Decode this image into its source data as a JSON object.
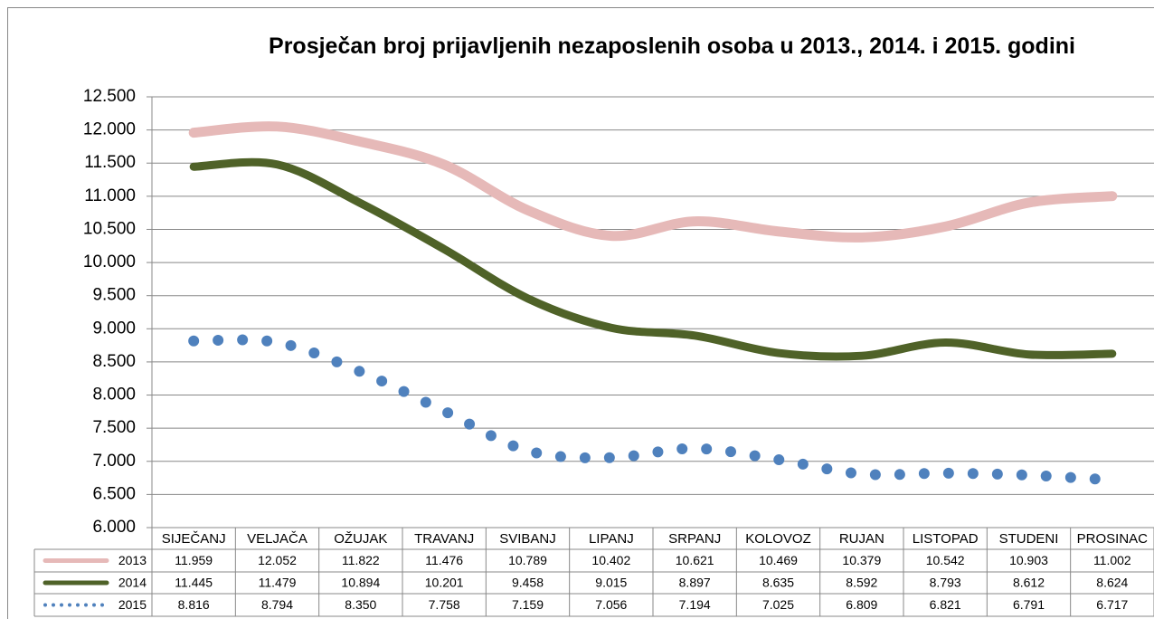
{
  "chart_data": {
    "type": "line",
    "title": "Prosječan broj prijavljenih nezaposlenih osoba u 2013., 2014. i 2015. godini",
    "categories": [
      "SIJEČANJ",
      "VELJAČA",
      "OŽUJAK",
      "TRAVANJ",
      "SVIBANJ",
      "LIPANJ",
      "SRPANJ",
      "KOLOVOZ",
      "RUJAN",
      "LISTOPAD",
      "STUDENI",
      "PROSINAC"
    ],
    "series": [
      {
        "name": "2013",
        "color": "#e6b9b8",
        "style": "solid",
        "values": [
          11959,
          12052,
          11822,
          11476,
          10789,
          10402,
          10621,
          10469,
          10379,
          10542,
          10903,
          11002
        ],
        "value_labels": [
          "11.959",
          "12.052",
          "11.822",
          "11.476",
          "10.789",
          "10.402",
          "10.621",
          "10.469",
          "10.379",
          "10.542",
          "10.903",
          "11.002"
        ]
      },
      {
        "name": "2014",
        "color": "#4f6228",
        "style": "solid",
        "values": [
          11445,
          11479,
          10894,
          10201,
          9458,
          9015,
          8897,
          8635,
          8592,
          8793,
          8612,
          8624
        ],
        "value_labels": [
          "11.445",
          "11.479",
          "10.894",
          "10.201",
          "9.458",
          "9.015",
          "8.897",
          "8.635",
          "8.592",
          "8.793",
          "8.612",
          "8.624"
        ]
      },
      {
        "name": "2015",
        "color": "#4f81bd",
        "style": "dotted",
        "values": [
          8816,
          8794,
          8350,
          7758,
          7159,
          7056,
          7194,
          7025,
          6809,
          6821,
          6791,
          6717
        ],
        "value_labels": [
          "8.816",
          "8.794",
          "8.350",
          "7.758",
          "7.159",
          "7.056",
          "7.194",
          "7.025",
          "6.809",
          "6.821",
          "6.791",
          "6.717"
        ]
      }
    ],
    "ylim": [
      6000,
      12500
    ],
    "yticks": [
      {
        "value": 6000,
        "label": "6.000"
      },
      {
        "value": 6500,
        "label": "6.500"
      },
      {
        "value": 7000,
        "label": "7.000"
      },
      {
        "value": 7500,
        "label": "7.500"
      },
      {
        "value": 8000,
        "label": "8.000"
      },
      {
        "value": 8500,
        "label": "8.500"
      },
      {
        "value": 9000,
        "label": "9.000"
      },
      {
        "value": 9500,
        "label": "9.500"
      },
      {
        "value": 10000,
        "label": "10.000"
      },
      {
        "value": 10500,
        "label": "10.500"
      },
      {
        "value": 11000,
        "label": "11.000"
      },
      {
        "value": 11500,
        "label": "11.500"
      },
      {
        "value": 12000,
        "label": "12.000"
      },
      {
        "value": 12500,
        "label": "12.500"
      }
    ],
    "grid": true,
    "smooth": true
  }
}
